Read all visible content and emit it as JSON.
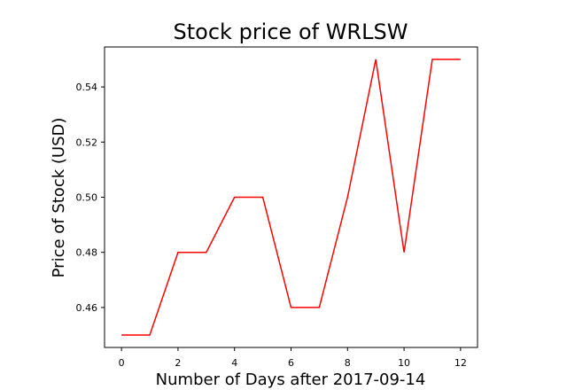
{
  "chart_data": {
    "type": "line",
    "title": "Stock price of WRLSW",
    "xlabel": "Number of Days after 2017-09-14",
    "ylabel": "Price of Stock (USD)",
    "x": [
      0,
      1,
      2,
      3,
      4,
      5,
      6,
      7,
      8,
      9,
      10,
      11,
      12
    ],
    "series": [
      {
        "values": [
          0.45,
          0.45,
          0.48,
          0.48,
          0.5,
          0.5,
          0.46,
          0.46,
          0.5,
          0.55,
          0.48,
          0.55,
          0.55
        ],
        "color": "#ff0000"
      }
    ],
    "x_ticks": [
      "0",
      "2",
      "4",
      "6",
      "8",
      "10",
      "12"
    ],
    "y_ticks": [
      "0.46",
      "0.48",
      "0.50",
      "0.52",
      "0.54"
    ],
    "xlim": [
      -0.6,
      12.6
    ],
    "ylim": [
      0.4455,
      0.5545
    ],
    "grid": false,
    "colors": {
      "line": "#ff0000",
      "axes": "#000000",
      "background": "#ffffff"
    }
  }
}
